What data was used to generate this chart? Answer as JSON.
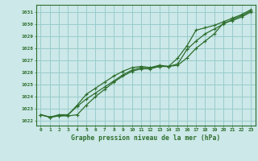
{
  "title": "Graphe pression niveau de la mer (hPa)",
  "bg_color": "#cce8e8",
  "grid_color": "#99cccc",
  "line_color": "#2d6e2d",
  "xlim": [
    -0.5,
    23.5
  ],
  "ylim": [
    1021.6,
    1031.6
  ],
  "yticks": [
    1022,
    1023,
    1024,
    1025,
    1026,
    1027,
    1028,
    1029,
    1030,
    1031
  ],
  "xticks": [
    0,
    1,
    2,
    3,
    4,
    5,
    6,
    7,
    8,
    9,
    10,
    11,
    12,
    13,
    14,
    15,
    16,
    17,
    18,
    19,
    20,
    21,
    22,
    23
  ],
  "series1": [
    1022.5,
    1022.3,
    1022.4,
    1022.4,
    1022.5,
    1023.3,
    1024.0,
    1024.6,
    1025.2,
    1025.7,
    1026.1,
    1026.3,
    1026.3,
    1026.5,
    1026.5,
    1026.6,
    1027.2,
    1028.0,
    1028.6,
    1029.2,
    1030.1,
    1030.3,
    1030.6,
    1031.0
  ],
  "series2": [
    1022.5,
    1022.3,
    1022.4,
    1022.5,
    1023.2,
    1023.8,
    1024.3,
    1024.8,
    1025.3,
    1025.8,
    1026.2,
    1026.4,
    1026.4,
    1026.5,
    1026.5,
    1026.7,
    1027.9,
    1028.6,
    1029.2,
    1029.6,
    1030.0,
    1030.4,
    1030.7,
    1031.1
  ],
  "series3": [
    1022.5,
    1022.3,
    1022.5,
    1022.5,
    1023.3,
    1024.2,
    1024.7,
    1025.2,
    1025.7,
    1026.1,
    1026.4,
    1026.5,
    1026.4,
    1026.6,
    1026.5,
    1027.2,
    1028.2,
    1029.5,
    1029.7,
    1029.9,
    1030.2,
    1030.5,
    1030.8,
    1031.2
  ]
}
